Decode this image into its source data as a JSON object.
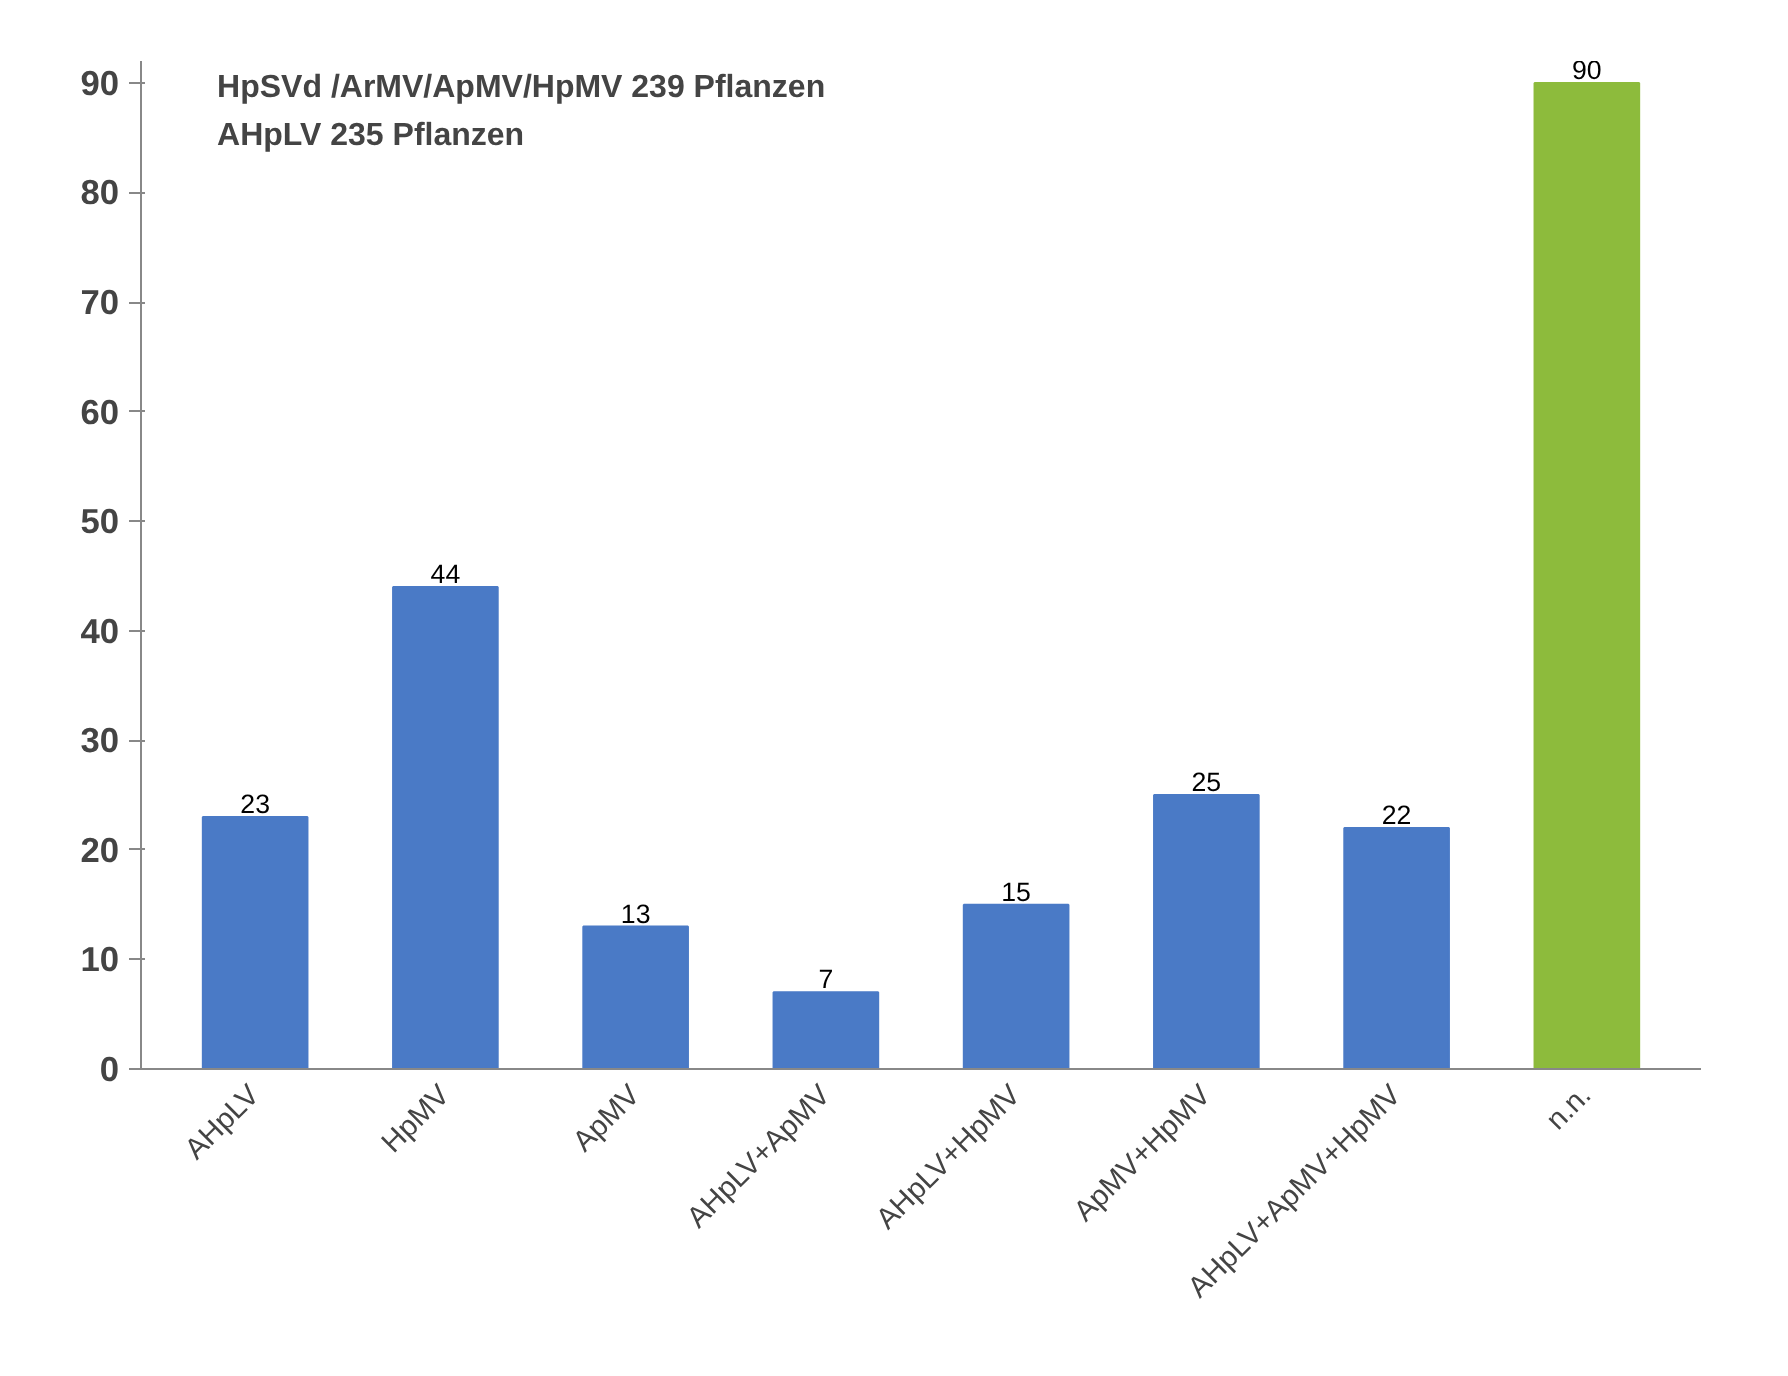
{
  "chart_data": {
    "type": "bar",
    "categories": [
      "AHpLV",
      "HpMV",
      "ApMV",
      "AHpLV+ApMV",
      "AHpLV+HpMV",
      "ApMV+HpMV",
      "AHpLV+ApMV+HpMV",
      "n.n."
    ],
    "values": [
      23,
      44,
      13,
      7,
      15,
      25,
      22,
      90
    ],
    "colors": [
      "#4a7ac6",
      "#4a7ac6",
      "#4a7ac6",
      "#4a7ac6",
      "#4a7ac6",
      "#4a7ac6",
      "#4a7ac6",
      "#8dbb3c"
    ],
    "ylim": [
      0,
      92
    ],
    "yticks": [
      0,
      10,
      20,
      30,
      40,
      50,
      60,
      70,
      80,
      90
    ],
    "grid": false,
    "data_labels": true,
    "annotations": [
      "HpSVd /ArMV/ApMV/HpMV 239 Pflanzen",
      "AHpLV 235 Pflanzen"
    ]
  }
}
